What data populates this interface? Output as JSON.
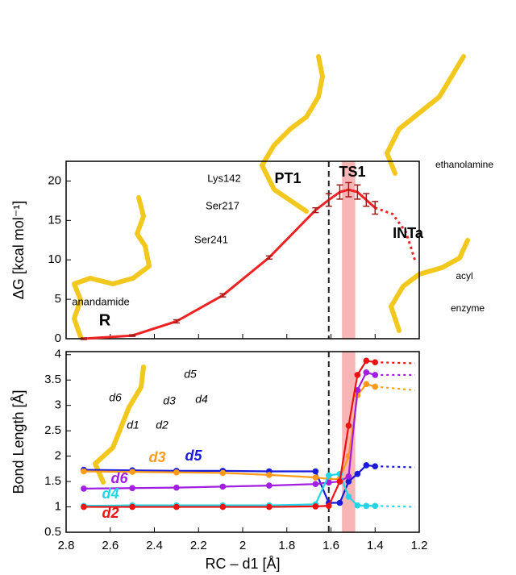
{
  "chart_data": [
    {
      "type": "line",
      "ylabel": "ΔG [kcal mol⁻¹]",
      "xlim": [
        2.8,
        1.2
      ],
      "xticks": [
        2.8,
        2.6,
        2.4,
        2.2,
        2,
        1.8,
        1.6,
        1.4,
        1.2
      ],
      "ylim": [
        0,
        22.5
      ],
      "yticks": [
        0,
        5,
        10,
        15,
        20
      ],
      "x": [
        2.72,
        2.5,
        2.3,
        2.09,
        1.88,
        1.67,
        1.61,
        1.56,
        1.52,
        1.48,
        1.44,
        1.4
      ],
      "values": [
        0,
        0.4,
        2.2,
        5.5,
        10.3,
        16.3,
        17.6,
        18.6,
        18.9,
        18.6,
        17.6,
        16.6
      ],
      "errors": [
        0.1,
        0.1,
        0.2,
        0.2,
        0.2,
        0.3,
        0.8,
        0.9,
        0.9,
        0.9,
        0.8,
        0.8
      ],
      "color": "#ee2222",
      "dotted_x": [
        1.4,
        1.32,
        1.26,
        1.22
      ],
      "dotted_values": [
        16.6,
        15.8,
        13.5,
        10
      ],
      "vline": 1.61,
      "band": [
        1.55,
        1.49
      ],
      "annotations": [
        "R",
        "anandamide",
        "Lys142",
        "Ser217",
        "Ser241",
        "PT1",
        "TS1",
        "INTa",
        "ethanolamine",
        "acyl",
        "enzyme"
      ]
    },
    {
      "type": "line",
      "ylabel": "Bond Length [Å]",
      "xlabel": "RC – d1 [Å]",
      "xlim": [
        2.8,
        1.2
      ],
      "xticks": [
        2.8,
        2.6,
        2.4,
        2.2,
        2,
        1.8,
        1.6,
        1.4,
        1.2
      ],
      "ylim": [
        0.5,
        4.06
      ],
      "yticks": [
        0.5,
        1,
        1.5,
        2,
        2.5,
        3,
        3.5,
        4
      ],
      "x": [
        2.72,
        2.5,
        2.3,
        2.09,
        1.88,
        1.67,
        1.61,
        1.56,
        1.52,
        1.48,
        1.44,
        1.4
      ],
      "dotted_x": [
        1.4,
        1.22
      ],
      "vline": 1.61,
      "band": [
        1.55,
        1.49
      ],
      "series": [
        {
          "name": "d5",
          "color": "#1a1adc",
          "values": [
            1.73,
            1.72,
            1.71,
            1.71,
            1.7,
            1.7,
            1.08,
            1.08,
            1.5,
            1.65,
            1.82,
            1.8
          ],
          "dotted_values": [
            1.8,
            1.78
          ]
        },
        {
          "name": "d3",
          "color": "#ff9a1a",
          "values": [
            1.7,
            1.69,
            1.68,
            1.67,
            1.63,
            1.58,
            1.55,
            1.55,
            2.0,
            3.2,
            3.42,
            3.37
          ],
          "dotted_values": [
            3.37,
            3.3
          ]
        },
        {
          "name": "d6",
          "color": "#a21ee0",
          "values": [
            1.36,
            1.37,
            1.38,
            1.4,
            1.42,
            1.45,
            1.48,
            1.5,
            1.6,
            3.3,
            3.65,
            3.6
          ],
          "dotted_values": [
            3.6,
            3.6
          ]
        },
        {
          "name": "d4",
          "color": "#22d6e6",
          "values": [
            1.02,
            1.03,
            1.03,
            1.03,
            1.03,
            1.05,
            1.62,
            1.65,
            1.2,
            1.03,
            1.02,
            1.02
          ],
          "dotted_values": [
            1.02,
            1.0
          ]
        },
        {
          "name": "d2",
          "color": "#ee1111",
          "values": [
            1.0,
            1.0,
            1.0,
            1.0,
            1.0,
            1.01,
            1.02,
            1.5,
            2.6,
            3.6,
            3.88,
            3.85
          ],
          "dotted_values": [
            3.85,
            3.83
          ]
        }
      ],
      "annotations": [
        "d6",
        "d1",
        "d2",
        "d3",
        "d4",
        "d5"
      ]
    }
  ]
}
